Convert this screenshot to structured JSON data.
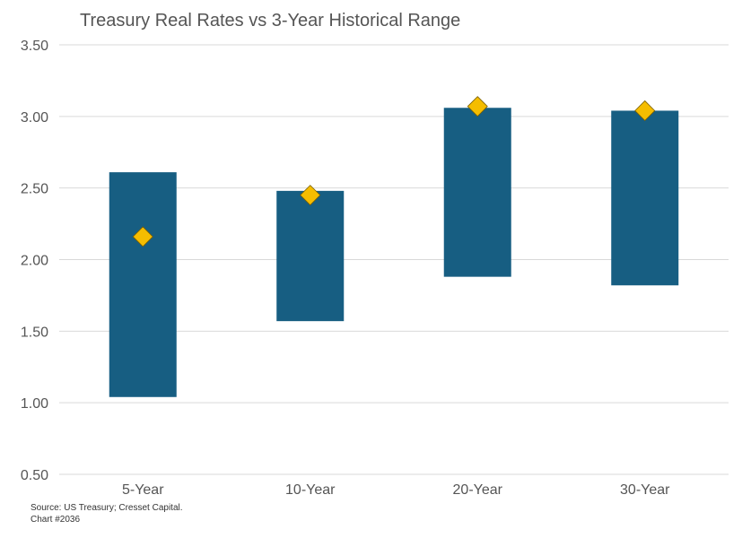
{
  "chart_data": {
    "type": "bar",
    "title": "Treasury Real Rates vs 3-Year Historical Range",
    "categories": [
      "5-Year",
      "10-Year",
      "20-Year",
      "30-Year"
    ],
    "series": [
      {
        "kind": "range-bar",
        "low": [
          1.04,
          1.57,
          1.88,
          1.82
        ],
        "high": [
          2.61,
          2.48,
          3.06,
          3.04
        ],
        "color": "#175e82"
      },
      {
        "kind": "marker",
        "marker": "diamond",
        "values": [
          2.16,
          2.45,
          3.07,
          3.04
        ],
        "color": "#f5bd00"
      }
    ],
    "xlabel": "",
    "ylabel": "",
    "ylim": [
      0.5,
      3.5
    ],
    "yticks": [
      "0.50",
      "1.00",
      "1.50",
      "2.00",
      "2.50",
      "3.00",
      "3.50"
    ],
    "grid": true,
    "gridColor": "#d9d9d9"
  },
  "footer": {
    "source": "Source: US Treasury; Cresset Capital.",
    "chart_number": "Chart #2036"
  }
}
